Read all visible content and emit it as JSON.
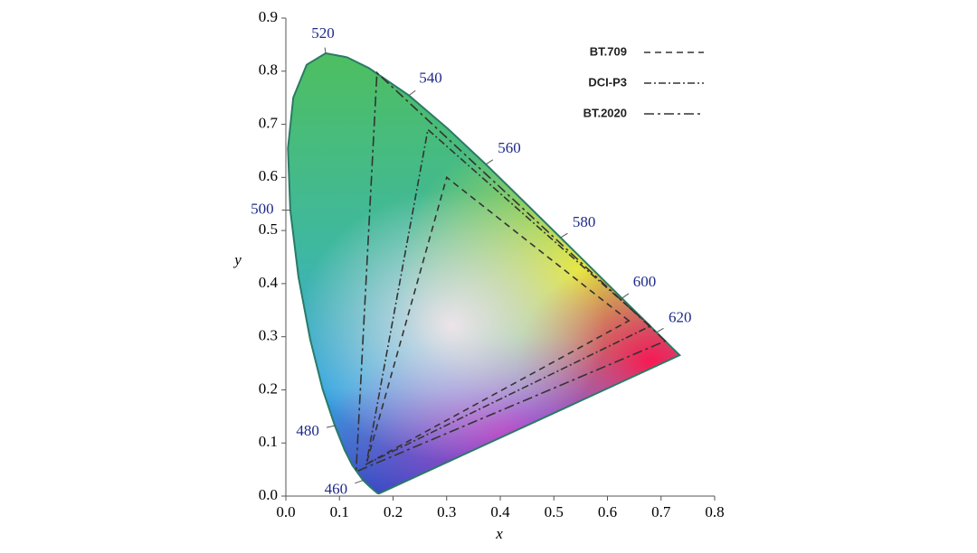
{
  "chart_data": {
    "type": "chromaticity",
    "x_label": "x",
    "y_label": "y",
    "xlim": [
      0,
      0.8
    ],
    "ylim": [
      0,
      0.9
    ],
    "xticks": [
      {
        "value": 0,
        "label": "0.0"
      },
      0.1,
      0.2,
      0.3,
      0.4,
      0.5,
      0.6,
      0.7,
      0.8
    ],
    "yticks": [
      {
        "value": 0,
        "label": "0.0"
      },
      0.1,
      0.2,
      0.3,
      0.4,
      0.5,
      0.6,
      0.7,
      0.8,
      0.9
    ],
    "locus": {
      "color": "#2a7a66",
      "x": [
        0.1741,
        0.1714,
        0.1644,
        0.1566,
        0.144,
        0.1241,
        0.1096,
        0.0913,
        0.0687,
        0.0454,
        0.0235,
        0.0082,
        0.0039,
        0.0139,
        0.0389,
        0.0743,
        0.1142,
        0.1547,
        0.2296,
        0.3016,
        0.3731,
        0.4441,
        0.5125,
        0.5752,
        0.627,
        0.6658,
        0.6915,
        0.719,
        0.7347
      ],
      "y": [
        0.005,
        0.0051,
        0.0109,
        0.0177,
        0.0297,
        0.0578,
        0.0868,
        0.1327,
        0.2007,
        0.295,
        0.4127,
        0.5384,
        0.6548,
        0.7502,
        0.812,
        0.8338,
        0.8262,
        0.8059,
        0.7543,
        0.6923,
        0.6245,
        0.5547,
        0.4866,
        0.4242,
        0.3725,
        0.334,
        0.3083,
        0.2809,
        0.2653
      ]
    },
    "wavelength_labels": {
      "color": "#1f2a8a",
      "values": [
        460,
        480,
        500,
        520,
        540,
        560,
        580,
        600,
        620
      ],
      "x": [
        0.144,
        0.0913,
        0.0082,
        0.0743,
        0.2296,
        0.3731,
        0.5125,
        0.627,
        0.6915
      ],
      "y": [
        0.0297,
        0.1327,
        0.5384,
        0.8338,
        0.7543,
        0.6245,
        0.4866,
        0.3725,
        0.3083
      ]
    },
    "series": [
      {
        "name": "BT.709",
        "color": "#333333",
        "dash": "dashed",
        "x": [
          0.64,
          0.3,
          0.15
        ],
        "values": [
          0.33,
          0.6,
          0.06
        ]
      },
      {
        "name": "DCI-P3",
        "color": "#333333",
        "dash": "dashdot",
        "x": [
          0.68,
          0.265,
          0.15
        ],
        "values": [
          0.32,
          0.69,
          0.06
        ]
      },
      {
        "name": "BT.2020",
        "color": "#333333",
        "dash": "longdash",
        "x": [
          0.708,
          0.17,
          0.131
        ],
        "values": [
          0.292,
          0.797,
          0.046
        ]
      }
    ]
  }
}
